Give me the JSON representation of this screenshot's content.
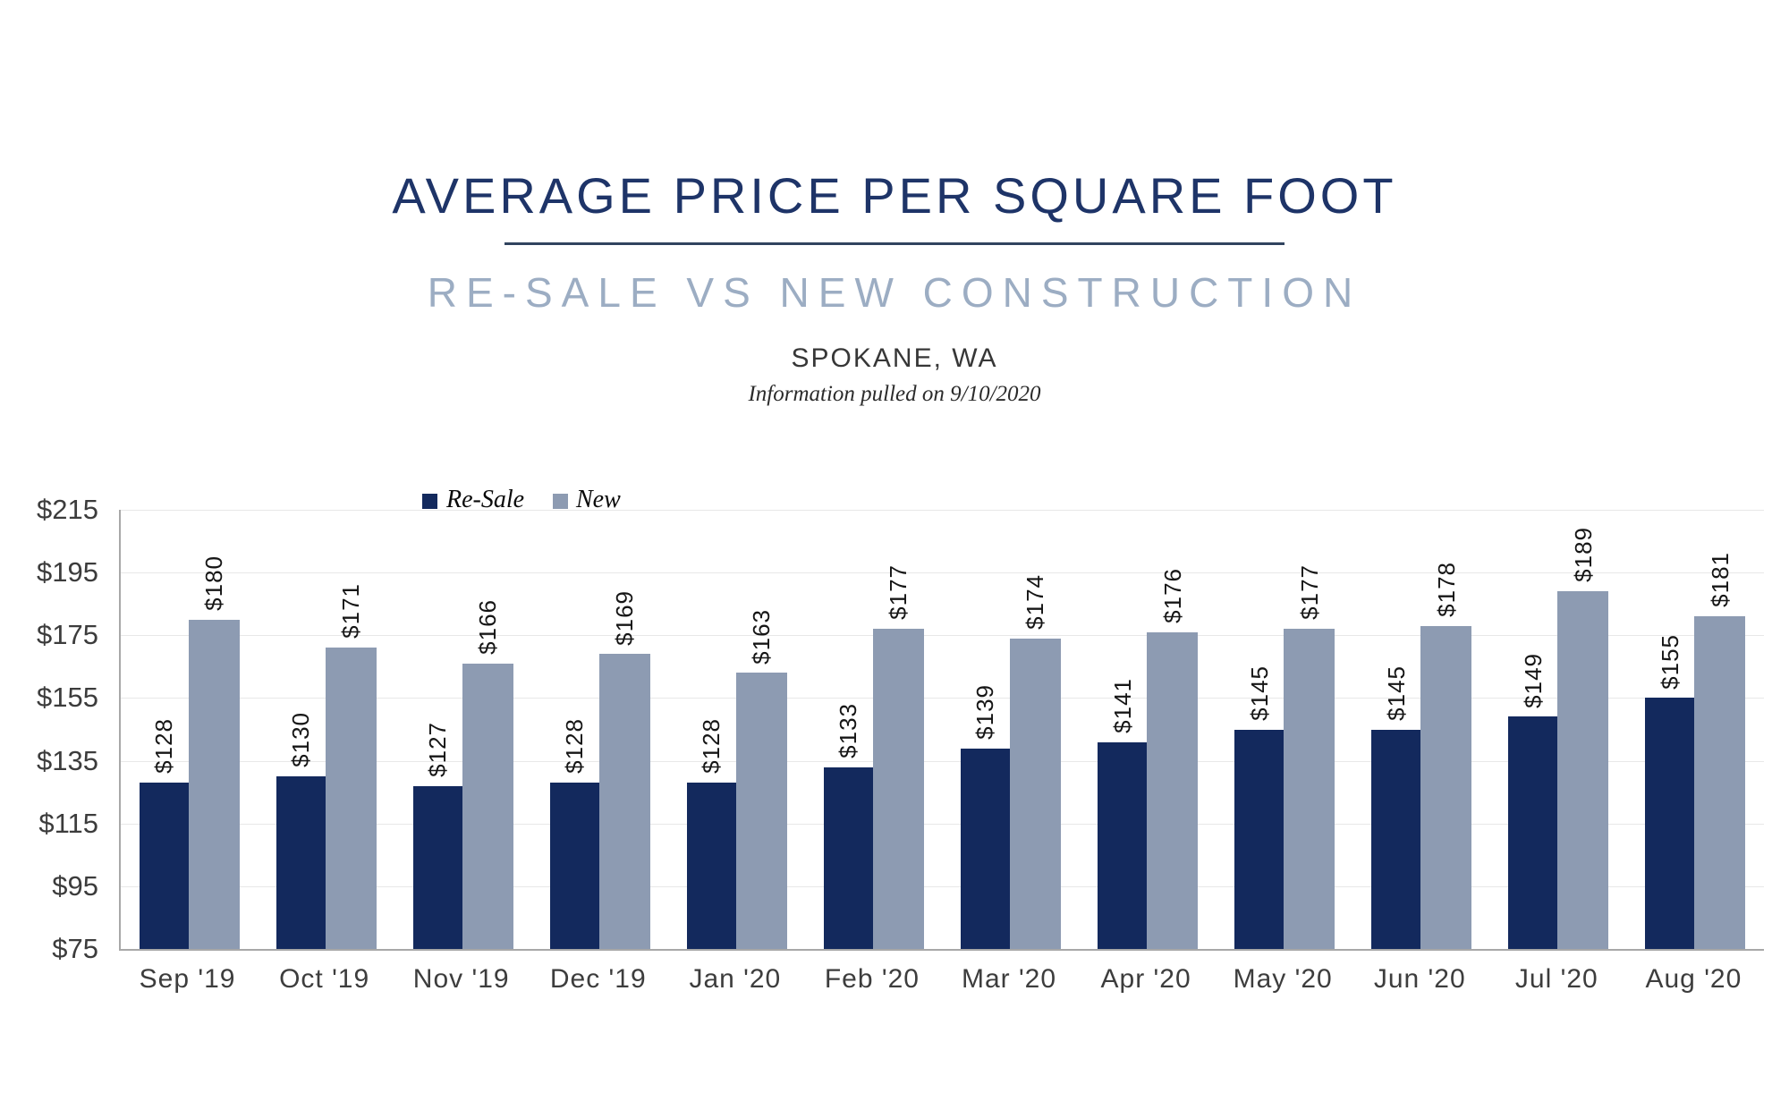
{
  "header": {
    "title": "AVERAGE PRICE PER SQUARE FOOT",
    "subtitle": "RE-SALE VS NEW CONSTRUCTION",
    "location": "SPOKANE, WA",
    "note": "Information pulled on 9/10/2020"
  },
  "legend": {
    "resale_label": "Re-Sale",
    "new_label": "New"
  },
  "colors": {
    "resale_bar": "#13295d",
    "new_bar": "#8d9bb2",
    "title_text": "#1e3468",
    "subtitle_text": "#9cadc3",
    "divider": "#31445f",
    "gridline": "#e8e8e8",
    "axis_line": "#a8a8a8"
  },
  "chart_data": {
    "type": "bar",
    "title": "AVERAGE PRICE PER SQUARE FOOT",
    "subtitle": "RE-SALE VS NEW CONSTRUCTION — SPOKANE, WA",
    "xlabel": "",
    "ylabel": "",
    "ylim": [
      75,
      215
    ],
    "gridline_step": 20,
    "grid": true,
    "legend_position": "top-left",
    "categories": [
      "Sep '19",
      "Oct '19",
      "Nov '19",
      "Dec '19",
      "Jan '20",
      "Feb '20",
      "Mar '20",
      "Apr '20",
      "May '20",
      "Jun '20",
      "Jul '20",
      "Aug '20"
    ],
    "series": [
      {
        "name": "Re-Sale",
        "key": "resale",
        "values": [
          128,
          130,
          127,
          128,
          128,
          133,
          139,
          141,
          145,
          145,
          149,
          155
        ],
        "labels": [
          "$128",
          "$130",
          "$127",
          "$128",
          "$128",
          "$133",
          "$139",
          "$141",
          "$145",
          "$145",
          "$149",
          "$155"
        ]
      },
      {
        "name": "New",
        "key": "new",
        "values": [
          180,
          171,
          166,
          169,
          163,
          177,
          174,
          176,
          177,
          178,
          189,
          181
        ],
        "labels": [
          "$180",
          "$171",
          "$166",
          "$169",
          "$163",
          "$177",
          "$174",
          "$176",
          "$177",
          "$178",
          "$189",
          "$181"
        ]
      }
    ],
    "y_ticks": [
      {
        "label": "$215",
        "value": 215
      },
      {
        "label": "$195",
        "value": 195
      },
      {
        "label": "$175",
        "value": 175
      },
      {
        "label": "$155",
        "value": 155
      },
      {
        "label": "$135",
        "value": 135
      },
      {
        "label": "$115",
        "value": 115
      },
      {
        "label": "$95",
        "value": 95
      },
      {
        "label": "$75",
        "value": 75
      }
    ]
  }
}
